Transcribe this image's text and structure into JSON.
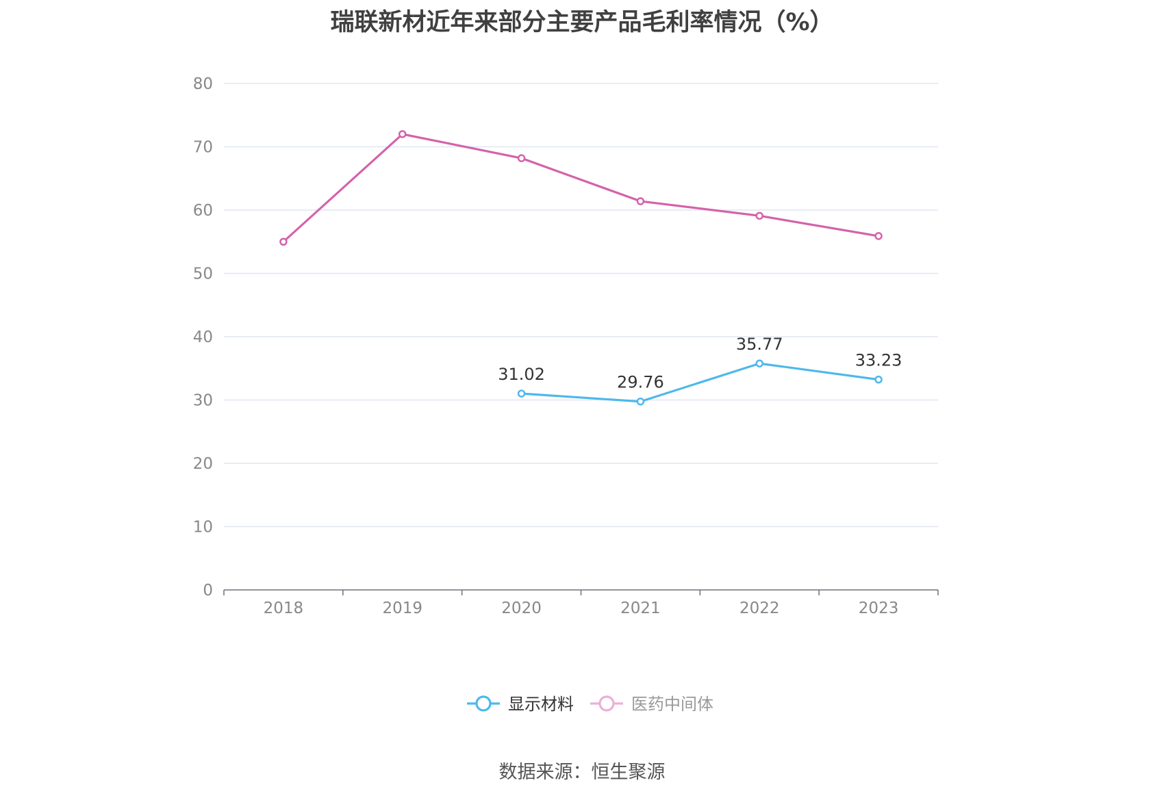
{
  "chart_data": {
    "type": "line",
    "title": "瑞联新材近年来部分主要产品毛利率情况（%）",
    "categories": [
      "2018",
      "2019",
      "2020",
      "2021",
      "2022",
      "2023"
    ],
    "ylim": [
      0,
      80
    ],
    "yticks": [
      0,
      10,
      20,
      30,
      40,
      50,
      60,
      70,
      80
    ],
    "grid": true,
    "legend_position": "bottom",
    "series": [
      {
        "name": "显示材料",
        "color": "#4db8ec",
        "values": [
          null,
          null,
          31.02,
          29.76,
          35.77,
          33.23
        ],
        "labels": [
          "",
          "",
          "31.02",
          "29.76",
          "35.77",
          "33.23"
        ]
      },
      {
        "name": "医药中间体",
        "color": "#d462ab",
        "values": [
          55.0,
          72.0,
          68.2,
          61.4,
          59.1,
          55.9
        ],
        "labels": []
      }
    ]
  },
  "legend": {
    "inactive_color": "#eab0d6",
    "inactive_text_color": "#999999",
    "active_text_color": "#333333"
  },
  "source": "数据来源：恒生聚源"
}
